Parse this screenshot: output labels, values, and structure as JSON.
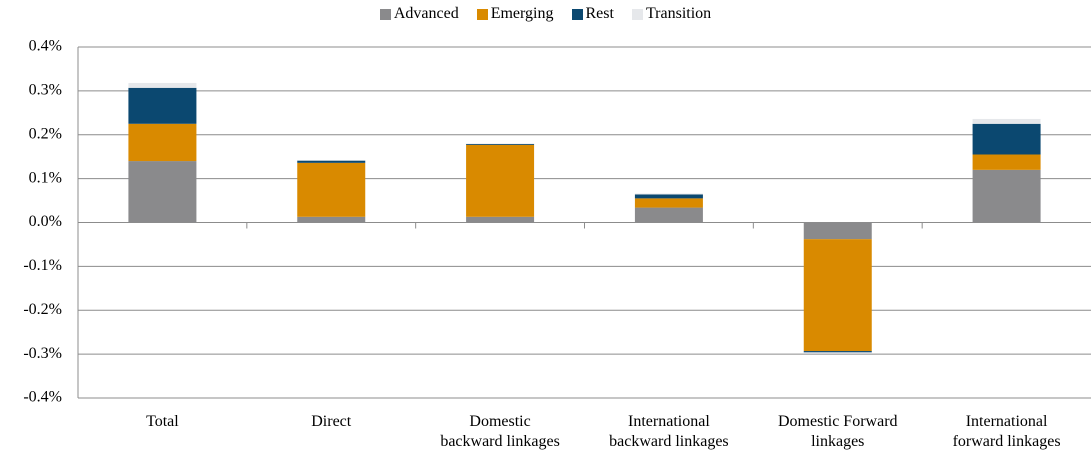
{
  "chart_data": {
    "type": "stacked_bar",
    "categories": [
      "Total",
      "Direct",
      "Domestic\nbackward linkages",
      "International\nbackward linkages",
      "Domestic Forward\nlinkages",
      "International\nforward linkages"
    ],
    "series": [
      {
        "name": "Advanced",
        "color": "#8a8a8c",
        "values": [
          0.14,
          0.013,
          0.013,
          0.034,
          -0.038,
          0.12
        ]
      },
      {
        "name": "Emerging",
        "color": "#d98a00",
        "values": [
          0.085,
          0.123,
          0.164,
          0.021,
          -0.255,
          0.035
        ]
      },
      {
        "name": "Rest",
        "color": "#0b4870",
        "values": [
          0.082,
          0.005,
          0.002,
          0.009,
          -0.003,
          0.07
        ]
      },
      {
        "name": "Transition",
        "color": "#e6e8eb",
        "values": [
          0.011,
          0.001,
          0.001,
          0.002,
          -0.003,
          0.011
        ]
      }
    ],
    "ylim": [
      -0.4,
      0.4
    ],
    "yticks": [
      {
        "value": -0.4,
        "label": "-0.4%"
      },
      {
        "value": -0.3,
        "label": "-0.3%"
      },
      {
        "value": -0.2,
        "label": "-0.2%"
      },
      {
        "value": -0.1,
        "label": "-0.1%"
      },
      {
        "value": 0,
        "label": "0.0%"
      },
      {
        "value": 0.1,
        "label": "0.1%"
      },
      {
        "value": 0.2,
        "label": "0.2%"
      },
      {
        "value": 0.3,
        "label": "0.3%"
      },
      {
        "value": 0.4,
        "label": "0.4%"
      }
    ],
    "grid": true,
    "legend": "top"
  }
}
